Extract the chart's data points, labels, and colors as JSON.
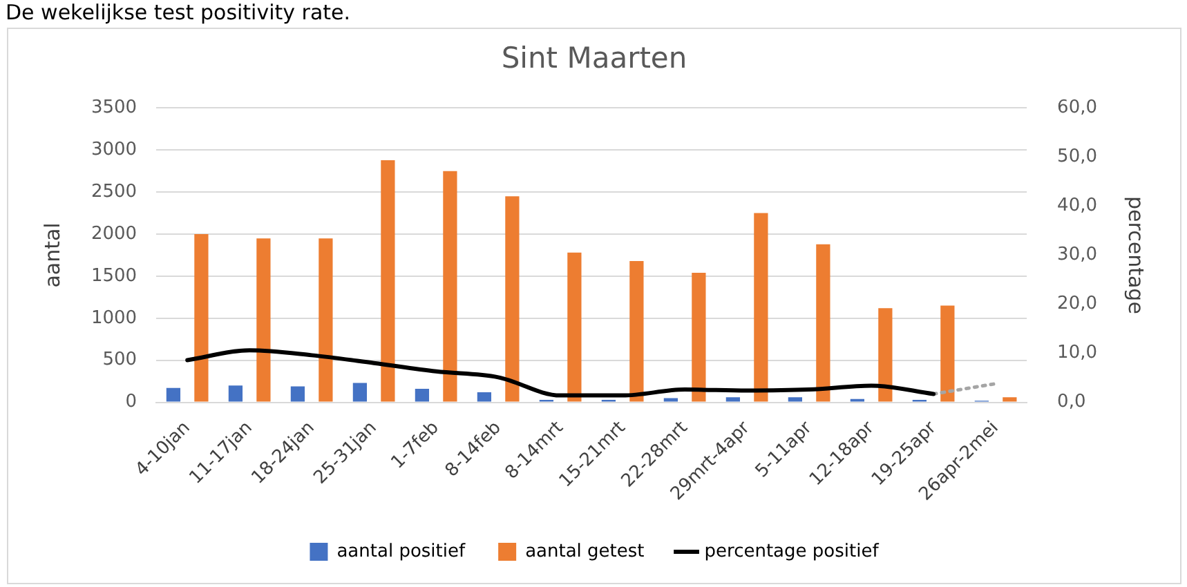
{
  "chart_data": {
    "type": "bar",
    "title": "Sint Maarten",
    "annotations": [
      "De wekelijkse test positivity rate."
    ],
    "ylabel": "aantal",
    "y2label": "percentage",
    "categories": [
      "4-10jan",
      "11-17jan",
      "18-24jan",
      "25-31jan",
      "1-7feb",
      "8-14feb",
      "8-14mrt",
      "15-21mrt",
      "22-28mrt",
      "29mrt-4apr",
      "5-11apr",
      "12-18apr",
      "19-25apr",
      "26apr-2mei"
    ],
    "series": [
      {
        "name": "aantal positief",
        "color": "#4472c4",
        "values": [
          170,
          200,
          190,
          230,
          160,
          120,
          30,
          30,
          50,
          60,
          60,
          40,
          30,
          20
        ]
      },
      {
        "name": "aantal getest",
        "color": "#ed7d31",
        "values": [
          2000,
          1950,
          1950,
          2880,
          2750,
          2450,
          1780,
          1680,
          1540,
          2250,
          1880,
          1120,
          1150,
          60
        ]
      },
      {
        "name": "percentage positief",
        "type": "line",
        "axis": "y2",
        "color": "#000000",
        "line_style": "solid",
        "values": [
          8.6,
          10.6,
          9.6,
          8.0,
          6.3,
          5.1,
          1.4,
          1.4,
          2.6,
          2.4,
          2.6,
          3.4,
          1.7,
          null
        ]
      },
      {
        "type": "line",
        "axis": "y2",
        "color": "#a5a5a5",
        "line_style": "dotted",
        "values": [
          null,
          null,
          null,
          null,
          null,
          null,
          null,
          null,
          null,
          null,
          null,
          null,
          1.7,
          3.8
        ]
      }
    ],
    "ylim": [
      0,
      3500
    ],
    "yticks": [
      0,
      500,
      1000,
      1500,
      2000,
      2500,
      3000,
      3500
    ],
    "y2lim": [
      0,
      60
    ],
    "y2ticks": [
      {
        "value": 0,
        "label": "0,0"
      },
      {
        "value": 10,
        "label": "10,0"
      },
      {
        "value": 20,
        "label": "20,0"
      },
      {
        "value": 30,
        "label": "30,0"
      },
      {
        "value": 40,
        "label": "40,0"
      },
      {
        "value": 50,
        "label": "50,0"
      },
      {
        "value": 60,
        "label": "60,0"
      }
    ],
    "grid": "y",
    "legend": "bottom",
    "marker": "none"
  }
}
